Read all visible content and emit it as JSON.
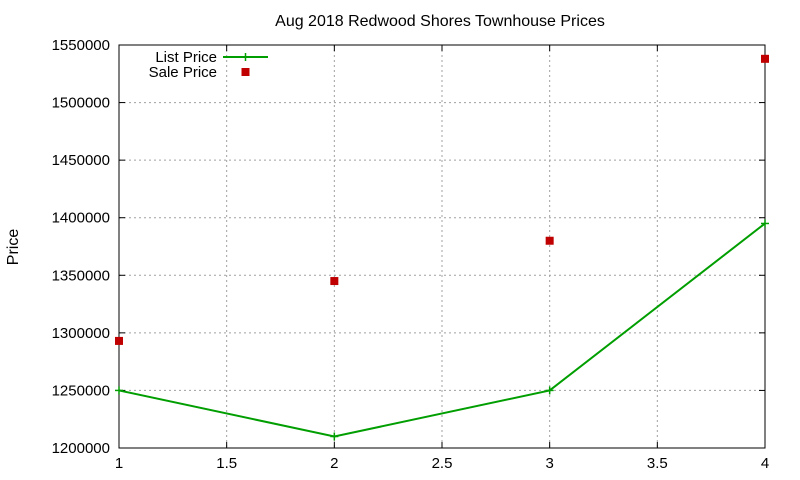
{
  "chart_data": {
    "type": "line",
    "title": "Aug 2018 Redwood Shores Townhouse Prices",
    "xlabel": "",
    "ylabel": "Price",
    "xlim": [
      1,
      4
    ],
    "ylim": [
      1200000,
      1550000
    ],
    "xticks": [
      1,
      1.5,
      2,
      2.5,
      3,
      3.5,
      4
    ],
    "yticks": [
      1200000,
      1250000,
      1300000,
      1350000,
      1400000,
      1450000,
      1500000,
      1550000
    ],
    "grid": true,
    "legend": "top-left",
    "series": [
      {
        "name": "List Price",
        "style": "linespoints",
        "marker": "plus",
        "color": "#009e00",
        "x": [
          1,
          2,
          3,
          4
        ],
        "y": [
          1250000,
          1210000,
          1250000,
          1395000
        ]
      },
      {
        "name": "Sale Price",
        "style": "points",
        "marker": "square",
        "color": "#c00000",
        "x": [
          1,
          2,
          3,
          4
        ],
        "y": [
          1293000,
          1345000,
          1380000,
          1538000
        ]
      }
    ]
  }
}
